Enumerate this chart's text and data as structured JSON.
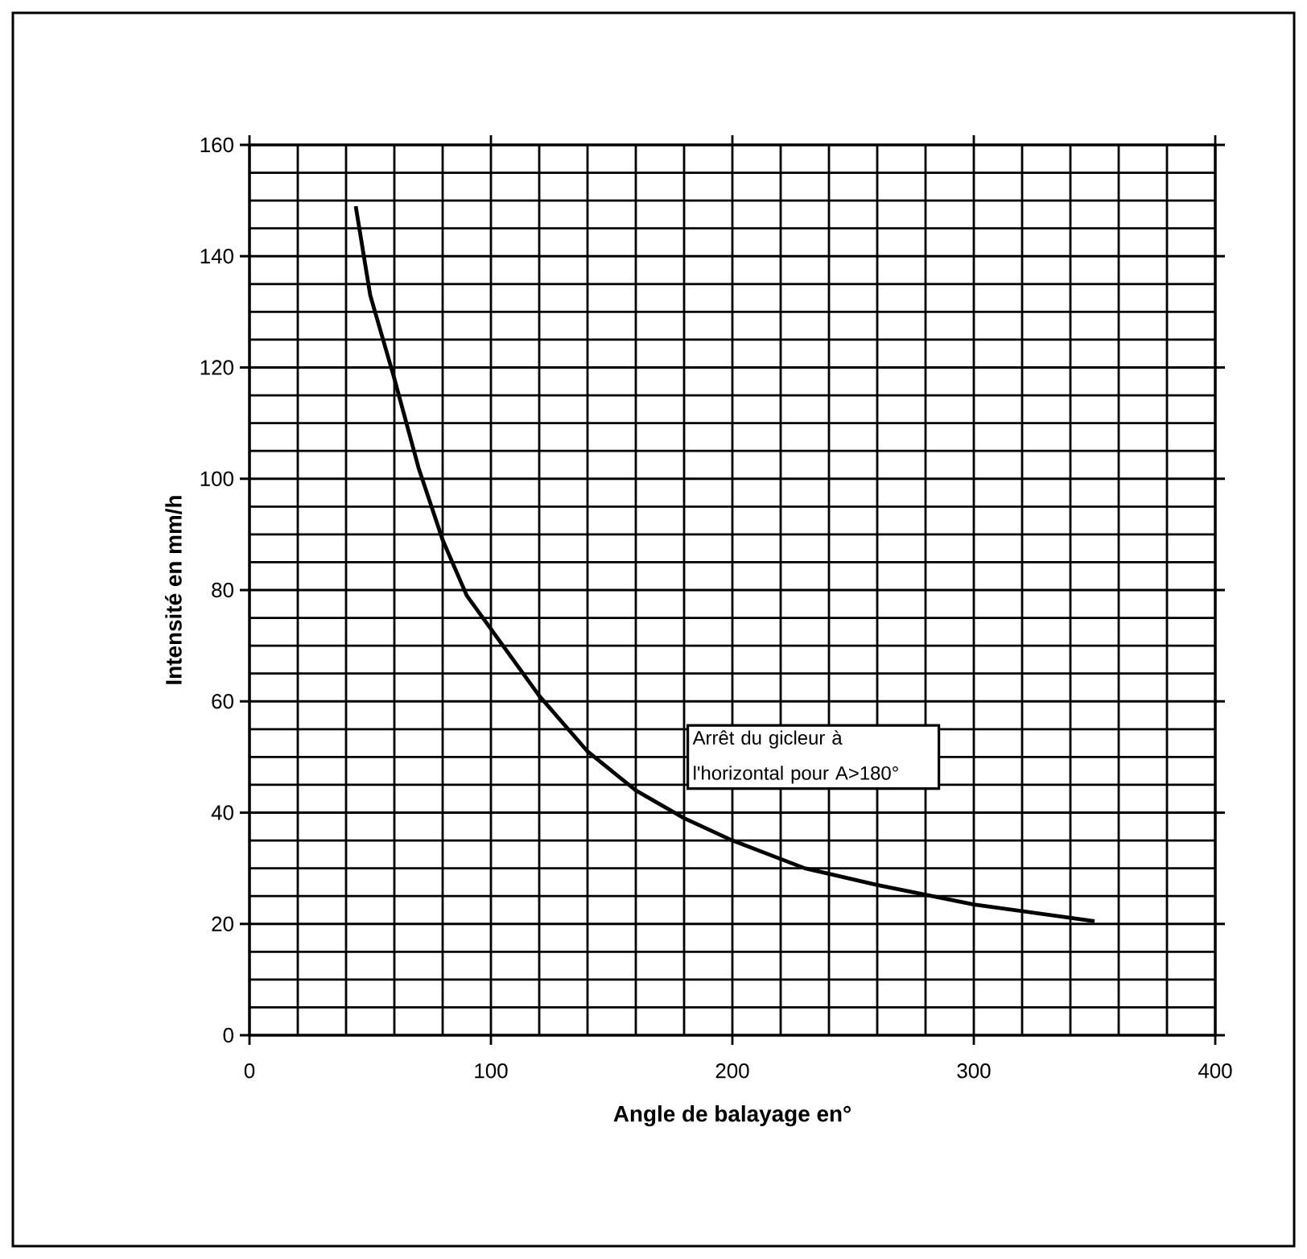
{
  "chart_data": {
    "type": "line",
    "xlabel": "Angle de balayage en°",
    "ylabel": "Intensité en mm/h",
    "x": [
      44,
      50,
      60,
      70,
      80,
      90,
      100,
      120,
      140,
      160,
      180,
      200,
      230,
      260,
      300,
      350
    ],
    "series": [
      {
        "color": "#000000",
        "values": [
          149,
          133,
          118,
          102,
          89,
          79,
          73,
          61,
          51,
          44,
          39,
          35,
          30,
          27,
          23.5,
          20.5
        ]
      }
    ],
    "xlim": [
      0,
      400
    ],
    "xticks": [
      0,
      {
        "value": 20,
        "label": null
      },
      {
        "value": 40,
        "label": null
      },
      {
        "value": 60,
        "label": null
      },
      {
        "value": 80,
        "label": null
      },
      100,
      {
        "value": 120,
        "label": null
      },
      {
        "value": 140,
        "label": null
      },
      {
        "value": 160,
        "label": null
      },
      {
        "value": 180,
        "label": null
      },
      200,
      {
        "value": 220,
        "label": null
      },
      {
        "value": 240,
        "label": null
      },
      {
        "value": 260,
        "label": null
      },
      {
        "value": 280,
        "label": null
      },
      300,
      {
        "value": 320,
        "label": null
      },
      {
        "value": 340,
        "label": null
      },
      {
        "value": 360,
        "label": null
      },
      {
        "value": 380,
        "label": null
      },
      400
    ],
    "ylim": [
      0,
      160
    ],
    "yticks": [
      0,
      {
        "value": 5,
        "label": null
      },
      {
        "value": 10,
        "label": null
      },
      {
        "value": 15,
        "label": null
      },
      20,
      {
        "value": 25,
        "label": null
      },
      {
        "value": 30,
        "label": null
      },
      {
        "value": 35,
        "label": null
      },
      40,
      {
        "value": 45,
        "label": null
      },
      {
        "value": 50,
        "label": null
      },
      {
        "value": 55,
        "label": null
      },
      60,
      {
        "value": 65,
        "label": null
      },
      {
        "value": 70,
        "label": null
      },
      {
        "value": 75,
        "label": null
      },
      80,
      {
        "value": 85,
        "label": null
      },
      {
        "value": 90,
        "label": null
      },
      {
        "value": 95,
        "label": null
      },
      100,
      {
        "value": 105,
        "label": null
      },
      {
        "value": 110,
        "label": null
      },
      {
        "value": 115,
        "label": null
      },
      120,
      {
        "value": 125,
        "label": null
      },
      {
        "value": 130,
        "label": null
      },
      {
        "value": 135,
        "label": null
      },
      140,
      {
        "value": 145,
        "label": null
      },
      {
        "value": 150,
        "label": null
      },
      {
        "value": 155,
        "label": null
      },
      160
    ],
    "grid": true,
    "marker": "none",
    "line_style": "solid",
    "annotations": [
      "Arrêt  du gicleur à l'horizontal pour A>180°"
    ]
  }
}
